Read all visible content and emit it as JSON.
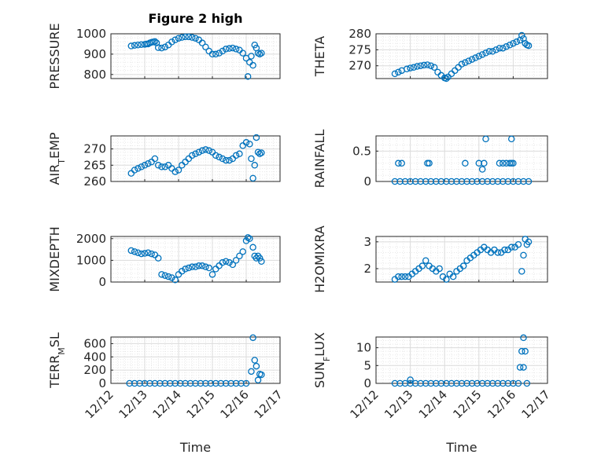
{
  "figure": {
    "title": "Figure 2 high",
    "xlabel": "Time"
  },
  "colors": {
    "marker": "#0072BD",
    "axis": "#262626",
    "grid_major": "#dcdcdc",
    "grid_minor": "#e8e8e8"
  },
  "x_ticks": [
    "12/12",
    "12/13",
    "12/14",
    "12/15",
    "12/16",
    "12/17"
  ],
  "chart_data": [
    {
      "type": "scatter",
      "ylabel": "PRESSURE",
      "ylabel_sub": "",
      "ylabel_tail": "",
      "ylim": [
        780,
        1000
      ],
      "yticks": [
        "1000",
        "900",
        "800"
      ],
      "ytick_values": [
        1000,
        900,
        800
      ],
      "x_domain": [
        "12/12",
        "12/17"
      ],
      "grid": true,
      "series": [
        {
          "x": [
            0.6,
            0.7,
            0.8,
            0.9,
            1.0,
            1.05,
            1.1,
            1.15,
            1.2,
            1.25,
            1.3,
            1.35,
            1.4,
            1.5,
            1.6,
            1.7,
            1.8,
            1.9,
            2.0,
            2.1,
            2.2,
            2.3,
            2.4,
            2.5,
            2.6,
            2.7,
            2.8,
            2.9,
            3.0,
            3.1,
            3.2,
            3.3,
            3.4,
            3.5,
            3.6,
            3.7,
            3.8,
            3.9,
            4.0,
            4.05,
            4.1,
            4.15,
            4.2,
            4.25,
            4.3,
            4.35,
            4.4,
            4.45
          ],
          "y": [
            940,
            943,
            945,
            947,
            948,
            950,
            950,
            955,
            958,
            960,
            962,
            955,
            932,
            930,
            935,
            945,
            960,
            970,
            978,
            982,
            985,
            985,
            982,
            978,
            970,
            955,
            935,
            915,
            900,
            900,
            905,
            915,
            925,
            928,
            930,
            925,
            920,
            905,
            880,
            790,
            860,
            890,
            845,
            945,
            930,
            905,
            900,
            905
          ]
        }
      ]
    },
    {
      "type": "scatter",
      "ylabel": "THETA",
      "ylabel_sub": "",
      "ylabel_tail": "",
      "ylim": [
        266,
        280
      ],
      "yticks": [
        "280",
        "275",
        "270"
      ],
      "ytick_values": [
        280,
        275,
        270
      ],
      "x_domain": [
        "12/12",
        "12/17"
      ],
      "grid": true,
      "series": [
        {
          "x": [
            0.55,
            0.65,
            0.75,
            0.9,
            1.0,
            1.1,
            1.2,
            1.3,
            1.4,
            1.5,
            1.6,
            1.7,
            1.8,
            1.9,
            2.0,
            2.05,
            2.1,
            2.2,
            2.3,
            2.4,
            2.5,
            2.6,
            2.7,
            2.8,
            2.9,
            3.0,
            3.1,
            3.2,
            3.3,
            3.4,
            3.5,
            3.6,
            3.7,
            3.8,
            3.9,
            4.0,
            4.1,
            4.2,
            4.25,
            4.3,
            4.35,
            4.4,
            4.45
          ],
          "y": [
            267.5,
            268.0,
            268.5,
            269.0,
            269.3,
            269.5,
            269.8,
            270.0,
            270.2,
            270.3,
            270.0,
            269.5,
            268.0,
            267.0,
            266.2,
            266.0,
            266.5,
            267.5,
            268.5,
            269.5,
            270.5,
            271.0,
            271.5,
            272.0,
            272.5,
            273.0,
            273.5,
            274.0,
            274.5,
            274.5,
            275.0,
            275.5,
            275.5,
            276.0,
            276.5,
            277.0,
            277.5,
            278.0,
            279.5,
            278.5,
            277.0,
            276.5,
            276.3
          ]
        }
      ]
    },
    {
      "type": "scatter",
      "ylabel": "AIR",
      "ylabel_sub": "T",
      "ylabel_tail": "EMP",
      "ylim": [
        260,
        274
      ],
      "yticks": [
        "270",
        "265",
        "260"
      ],
      "ytick_values": [
        270,
        265,
        260
      ],
      "x_domain": [
        "12/12",
        "12/17"
      ],
      "grid": true,
      "series": [
        {
          "x": [
            0.6,
            0.7,
            0.8,
            0.9,
            1.0,
            1.1,
            1.2,
            1.3,
            1.4,
            1.5,
            1.6,
            1.7,
            1.8,
            1.9,
            2.0,
            2.1,
            2.2,
            2.3,
            2.4,
            2.5,
            2.6,
            2.7,
            2.8,
            2.9,
            3.0,
            3.1,
            3.2,
            3.3,
            3.4,
            3.5,
            3.6,
            3.7,
            3.8,
            3.9,
            4.0,
            4.1,
            4.15,
            4.2,
            4.25,
            4.3,
            4.35,
            4.4,
            4.45
          ],
          "y": [
            262.5,
            263.5,
            264.0,
            264.5,
            265.0,
            265.5,
            266.0,
            267.0,
            265.0,
            264.5,
            264.5,
            265.0,
            264.0,
            263.0,
            263.5,
            265.0,
            266.0,
            267.0,
            268.0,
            268.5,
            269.0,
            269.5,
            269.8,
            269.5,
            269.0,
            268.0,
            267.5,
            267.0,
            266.5,
            266.5,
            267.0,
            268.0,
            268.5,
            271.0,
            272.0,
            271.5,
            267.0,
            261.0,
            265.0,
            273.5,
            269.0,
            268.5,
            268.8
          ]
        }
      ]
    },
    {
      "type": "scatter",
      "ylabel": "RAINFALL",
      "ylabel_sub": "",
      "ylabel_tail": "",
      "ylim": [
        0,
        0.75
      ],
      "yticks": [
        "0.5",
        "0"
      ],
      "ytick_values": [
        0.5,
        0
      ],
      "x_domain": [
        "12/12",
        "12/17"
      ],
      "grid": true,
      "series": [
        {
          "x": [
            0.55,
            0.7,
            0.85,
            1.0,
            1.15,
            1.3,
            1.45,
            1.6,
            1.75,
            1.9,
            2.05,
            2.2,
            2.35,
            2.5,
            2.65,
            2.8,
            2.95,
            3.1,
            3.25,
            3.4,
            3.55,
            3.7,
            3.85,
            4.0,
            4.15,
            4.3,
            4.45,
            0.65,
            0.75,
            1.5,
            1.55,
            2.6,
            3.0,
            3.1,
            3.15,
            3.6,
            3.7,
            3.8,
            3.9,
            3.95,
            4.0,
            3.2,
            3.95
          ],
          "y": [
            0,
            0,
            0,
            0,
            0,
            0,
            0,
            0,
            0,
            0,
            0,
            0,
            0,
            0,
            0,
            0,
            0,
            0,
            0,
            0,
            0,
            0,
            0,
            0,
            0,
            0,
            0,
            0.3,
            0.3,
            0.3,
            0.3,
            0.3,
            0.3,
            0.2,
            0.3,
            0.3,
            0.3,
            0.3,
            0.3,
            0.3,
            0.3,
            0.7,
            0.7
          ]
        }
      ]
    },
    {
      "type": "scatter",
      "ylabel": "MIXDEPTH",
      "ylabel_sub": "",
      "ylabel_tail": "",
      "ylim": [
        0,
        2100
      ],
      "yticks": [
        "2000",
        "1000",
        "0"
      ],
      "ytick_values": [
        2000,
        1000,
        0
      ],
      "x_domain": [
        "12/12",
        "12/17"
      ],
      "grid": true,
      "series": [
        {
          "x": [
            0.6,
            0.7,
            0.8,
            0.9,
            1.0,
            1.1,
            1.2,
            1.3,
            1.4,
            1.5,
            1.6,
            1.7,
            1.8,
            1.9,
            2.0,
            2.1,
            2.2,
            2.3,
            2.4,
            2.5,
            2.6,
            2.7,
            2.8,
            2.9,
            3.0,
            3.1,
            3.2,
            3.3,
            3.4,
            3.5,
            3.6,
            3.7,
            3.8,
            3.9,
            4.0,
            4.05,
            4.1,
            4.2,
            4.25,
            4.3,
            4.35,
            4.4,
            4.45
          ],
          "y": [
            1450,
            1400,
            1350,
            1300,
            1320,
            1350,
            1300,
            1250,
            1100,
            350,
            300,
            250,
            200,
            100,
            350,
            500,
            600,
            650,
            700,
            700,
            750,
            750,
            700,
            650,
            350,
            600,
            750,
            900,
            950,
            900,
            800,
            1000,
            1200,
            1400,
            1900,
            2050,
            2000,
            1600,
            1200,
            1100,
            1200,
            1100,
            950
          ]
        }
      ]
    },
    {
      "type": "scatter",
      "ylabel": "H2OMIXRA",
      "ylabel_sub": "",
      "ylabel_tail": "",
      "ylim": [
        1.5,
        3.2
      ],
      "yticks": [
        "3",
        "2"
      ],
      "ytick_values": [
        3,
        2
      ],
      "x_domain": [
        "12/12",
        "12/17"
      ],
      "grid": true,
      "series": [
        {
          "x": [
            0.55,
            0.65,
            0.75,
            0.85,
            0.95,
            1.05,
            1.15,
            1.25,
            1.35,
            1.45,
            1.55,
            1.65,
            1.75,
            1.85,
            1.95,
            2.05,
            2.15,
            2.25,
            2.35,
            2.45,
            2.55,
            2.65,
            2.75,
            2.85,
            2.95,
            3.05,
            3.15,
            3.25,
            3.35,
            3.45,
            3.55,
            3.65,
            3.75,
            3.85,
            3.95,
            4.05,
            4.15,
            4.25,
            4.3,
            4.35,
            4.4,
            4.45
          ],
          "y": [
            1.6,
            1.7,
            1.7,
            1.7,
            1.7,
            1.8,
            1.9,
            2.0,
            2.1,
            2.3,
            2.1,
            2.0,
            1.9,
            2.0,
            1.7,
            1.6,
            1.8,
            1.7,
            1.9,
            2.0,
            2.1,
            2.3,
            2.4,
            2.5,
            2.6,
            2.7,
            2.8,
            2.7,
            2.6,
            2.7,
            2.6,
            2.6,
            2.7,
            2.7,
            2.8,
            2.8,
            2.9,
            1.9,
            2.5,
            3.1,
            2.9,
            3.0
          ]
        }
      ]
    },
    {
      "type": "scatter",
      "ylabel": "TERR",
      "ylabel_sub": "M",
      "ylabel_tail": "SL",
      "ylim": [
        0,
        700
      ],
      "yticks": [
        "600",
        "400",
        "200",
        "0"
      ],
      "ytick_values": [
        600,
        400,
        200,
        0
      ],
      "x_domain": [
        "12/12",
        "12/17"
      ],
      "grid": true,
      "series": [
        {
          "x": [
            0.55,
            0.7,
            0.85,
            1.0,
            1.15,
            1.3,
            1.45,
            1.6,
            1.75,
            1.9,
            2.05,
            2.2,
            2.35,
            2.5,
            2.65,
            2.8,
            2.95,
            3.1,
            3.25,
            3.4,
            3.55,
            3.7,
            3.85,
            4.0,
            4.15,
            4.2,
            4.25,
            4.3,
            4.35,
            4.4,
            4.45
          ],
          "y": [
            0,
            0,
            0,
            0,
            0,
            0,
            0,
            0,
            0,
            0,
            0,
            0,
            0,
            0,
            0,
            0,
            0,
            0,
            0,
            0,
            0,
            0,
            0,
            0,
            180,
            690,
            350,
            260,
            50,
            140,
            130
          ]
        }
      ]
    },
    {
      "type": "scatter",
      "ylabel": "SUN",
      "ylabel_sub": "F",
      "ylabel_tail": "LUX",
      "ylim": [
        0,
        13
      ],
      "yticks": [
        "10",
        "5",
        "0"
      ],
      "ytick_values": [
        10,
        5,
        0
      ],
      "x_domain": [
        "12/12",
        "12/17"
      ],
      "grid": true,
      "series": [
        {
          "x": [
            0.55,
            0.7,
            0.85,
            1.0,
            1.15,
            1.3,
            1.45,
            1.6,
            1.75,
            1.9,
            2.05,
            2.2,
            2.35,
            2.5,
            2.65,
            2.8,
            2.95,
            3.1,
            3.25,
            3.4,
            3.55,
            3.7,
            3.85,
            4.0,
            4.15,
            1.0,
            4.2,
            4.3,
            4.25,
            4.35,
            4.3,
            4.4
          ],
          "y": [
            0,
            0,
            0,
            0,
            0,
            0,
            0,
            0,
            0,
            0,
            0,
            0,
            0,
            0,
            0,
            0,
            0,
            0,
            0,
            0,
            0,
            0,
            0,
            0,
            0,
            1.0,
            4.5,
            12.8,
            9.0,
            9.0,
            4.5,
            0
          ]
        }
      ]
    }
  ]
}
